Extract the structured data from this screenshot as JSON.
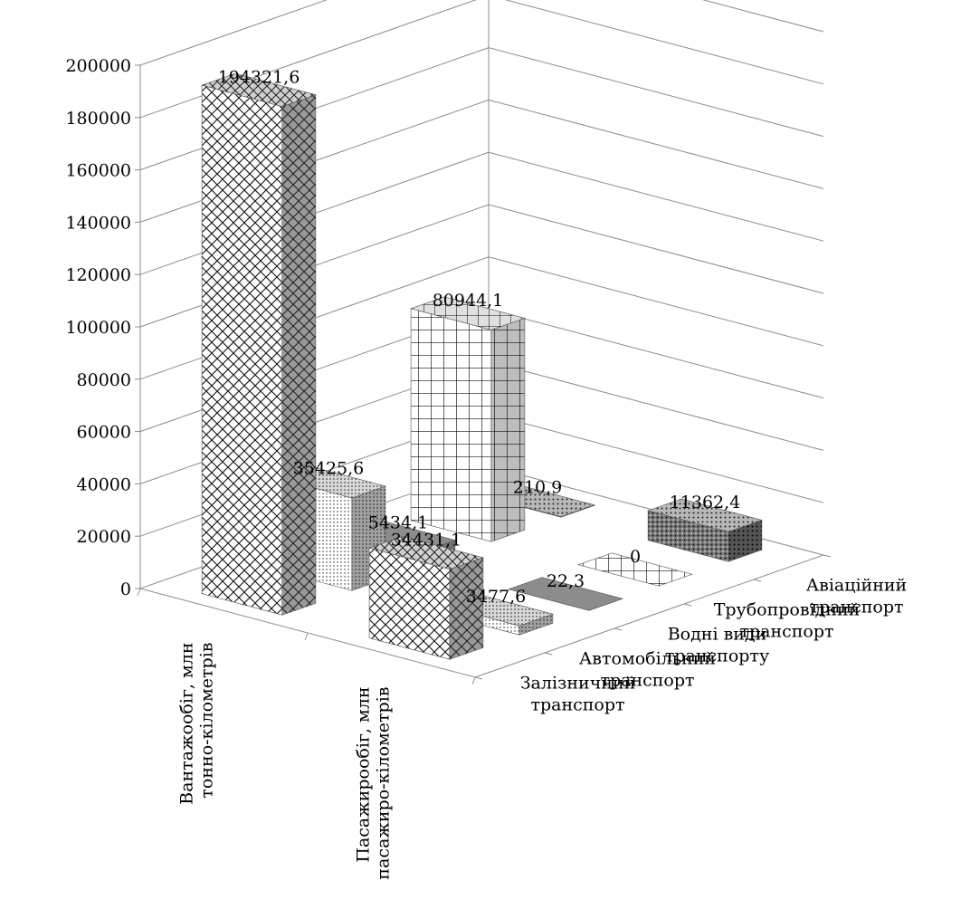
{
  "chart_data": {
    "type": "bar",
    "subtype": "3d-column",
    "title": "",
    "categories": [
      {
        "line1": "Вантажообіг, млн",
        "line2": "тонно-кілометрів"
      },
      {
        "line1": "Пасажирообіг, млн",
        "line2": "пасажиро-кілометрів"
      }
    ],
    "series": [
      {
        "name_lines": [
          "Залізничний",
          "транспорт"
        ],
        "values": [
          194321.6,
          34431.1
        ],
        "labels": [
          "194321,6",
          "34431,1"
        ]
      },
      {
        "name_lines": [
          "Автомобільний",
          "транспорт"
        ],
        "values": [
          35425.6,
          3477.6
        ],
        "labels": [
          "35425,6",
          "3477,6"
        ]
      },
      {
        "name_lines": [
          "Водні види",
          "транспорту"
        ],
        "values": [
          5434.1,
          22.3
        ],
        "labels": [
          "5434,1",
          "22,3"
        ]
      },
      {
        "name_lines": [
          "Трубопровідний",
          "транспорт"
        ],
        "values": [
          80944.1,
          0
        ],
        "labels": [
          "80944,1",
          "0"
        ]
      },
      {
        "name_lines": [
          "Авіаційний",
          "транспорт"
        ],
        "values": [
          210.9,
          11362.4
        ],
        "labels": [
          "210,9",
          "11362,4"
        ]
      }
    ],
    "ylim": [
      0,
      200000
    ],
    "yticks": [
      "0",
      "20000",
      "40000",
      "60000",
      "80000",
      "100000",
      "120000",
      "140000",
      "160000",
      "180000",
      "200000"
    ],
    "grid": true,
    "fill_patterns": [
      "diagonal-cross",
      "dotted",
      "solid-gray",
      "square-grid",
      "fine-dotted"
    ]
  }
}
